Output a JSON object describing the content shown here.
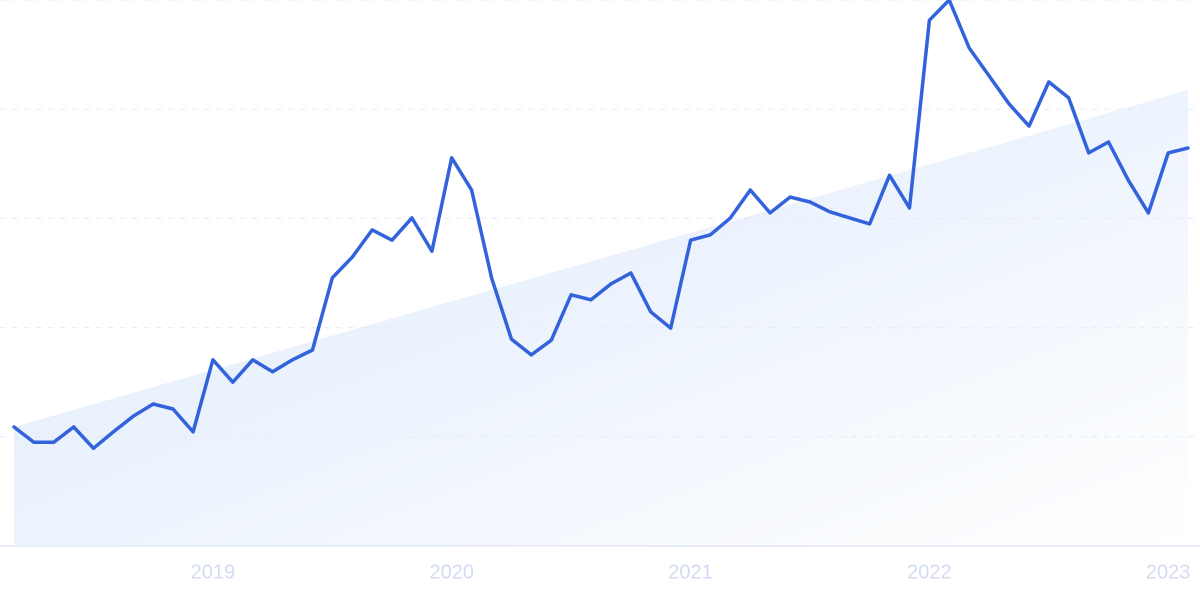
{
  "chart_data": {
    "type": "line",
    "x": [
      2018.167,
      2018.25,
      2018.333,
      2018.417,
      2018.5,
      2018.583,
      2018.667,
      2018.75,
      2018.833,
      2018.917,
      2019.0,
      2019.083,
      2019.167,
      2019.25,
      2019.333,
      2019.417,
      2019.5,
      2019.583,
      2019.667,
      2019.75,
      2019.833,
      2019.917,
      2020.0,
      2020.083,
      2020.167,
      2020.25,
      2020.333,
      2020.417,
      2020.5,
      2020.583,
      2020.667,
      2020.75,
      2020.833,
      2020.917,
      2021.0,
      2021.083,
      2021.167,
      2021.25,
      2021.333,
      2021.417,
      2021.5,
      2021.583,
      2021.667,
      2021.75,
      2021.833,
      2021.917,
      2022.0,
      2022.083,
      2022.167,
      2022.25,
      2022.333,
      2022.417,
      2022.5,
      2022.583,
      2022.667,
      2022.75,
      2022.833,
      2022.917,
      2023.0,
      2023.083
    ],
    "values": [
      21.8,
      19.0,
      19.0,
      21.8,
      17.9,
      20.9,
      23.8,
      26.0,
      25.1,
      20.9,
      34.1,
      30.0,
      34.1,
      31.9,
      34.1,
      35.9,
      49.1,
      52.9,
      57.9,
      56.0,
      60.1,
      54.0,
      71.1,
      65.2,
      49.1,
      37.9,
      35.0,
      37.7,
      46.0,
      45.1,
      48.0,
      50.0,
      42.9,
      39.9,
      56.0,
      57.0,
      60.1,
      65.2,
      61.0,
      63.9,
      63.0,
      61.2,
      60.1,
      59.0,
      67.9,
      61.9,
      96.3,
      100,
      91.2,
      86.1,
      81.0,
      76.9,
      85.0,
      82.1,
      72.0,
      74.0,
      67.0,
      61.0,
      72.0,
      72.9
    ],
    "color": "#3262dc",
    "trend": {
      "values": [
        21.8,
        83.5
      ],
      "color": "#dbe8fb"
    },
    "xlim": [
      2018.167,
      2023.083
    ],
    "xticks": [
      2019,
      2020,
      2021,
      2022,
      2023
    ],
    "ylim": [
      0,
      100
    ],
    "ygrid": [
      0,
      20,
      40,
      60,
      80,
      100
    ]
  }
}
